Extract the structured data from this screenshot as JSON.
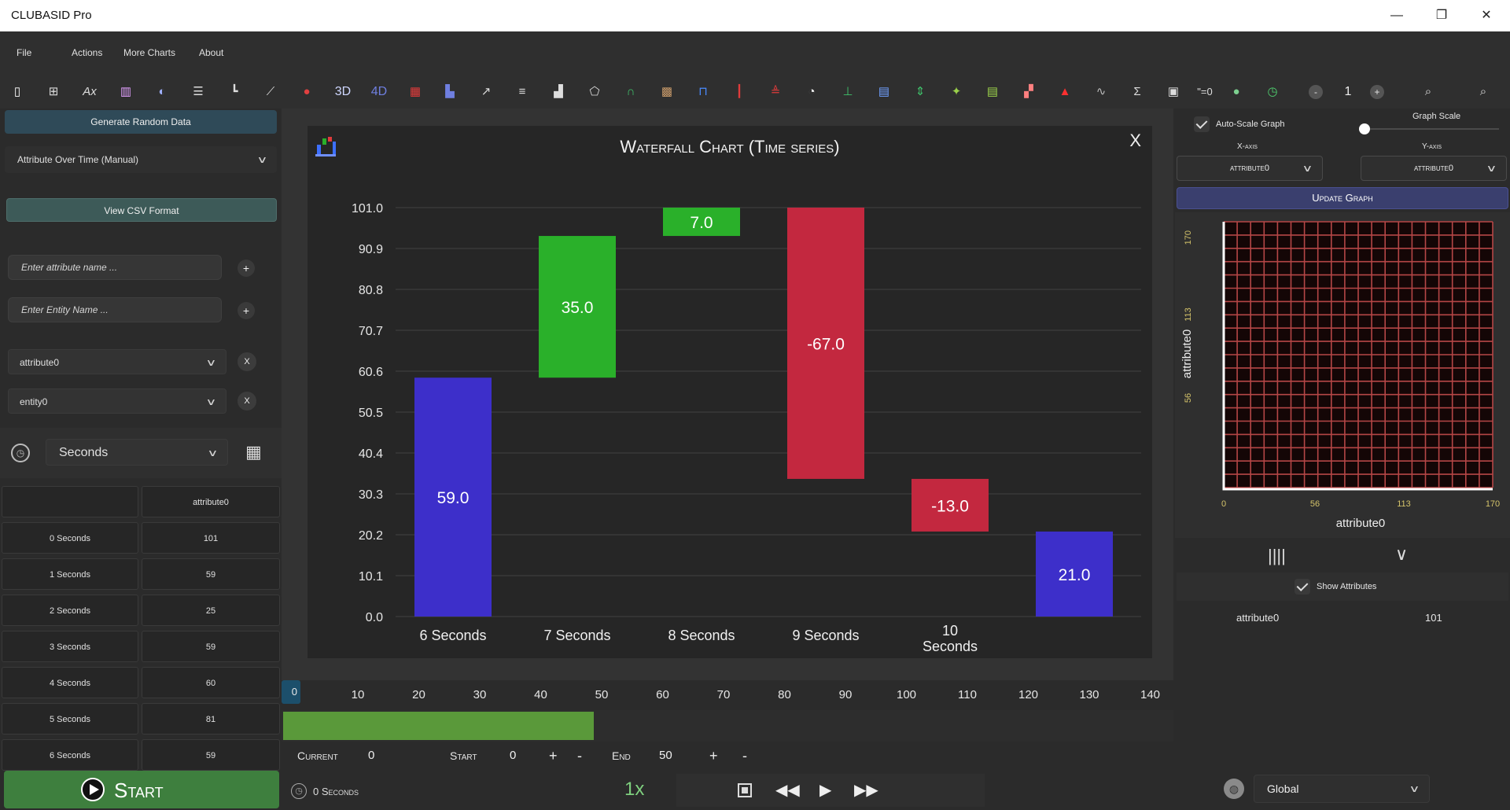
{
  "window": {
    "title": "CLUBASID Pro",
    "minimize": "—",
    "restore": "❐",
    "close": "✕"
  },
  "menu": [
    "File",
    "Actions",
    "More Charts",
    "About"
  ],
  "toolbar": {
    "icons": [
      "new-file-icon",
      "grid-icon",
      "formula-icon",
      "bar-chart-icon",
      "pie-icon",
      "hbar-icon",
      "axis-icon",
      "line-icon",
      "bubble-icon",
      "3d-icon",
      "4d-icon",
      "heat-icon",
      "column-icon",
      "trend-icon",
      "stream-icon",
      "histogram-icon",
      "pentagon-icon",
      "arc-icon",
      "mosaic-icon",
      "box-icon",
      "candle-icon",
      "pyramid-icon",
      "donut-icon",
      "range-icon",
      "map-icon",
      "updown-icon",
      "globe-icon",
      "table-icon",
      "sparkline-icon",
      "alert-icon",
      "wave-icon",
      "sum-icon",
      "image-icon",
      "equation-icon",
      "color-icon",
      "clock-icon"
    ],
    "text_3d": "3D",
    "text_4d": "4D",
    "text_eq": "\"=0",
    "zoom_value": "1",
    "minus": "-",
    "plus": "+"
  },
  "left": {
    "generate_btn": "Generate Random Data",
    "mode_select": "Attribute Over Time (Manual)",
    "view_csv_btn": "View CSV Format",
    "attr_placeholder": "Enter attribute name ...",
    "entity_placeholder": "Enter Entity Name ...",
    "attr_select": "attribute0",
    "entity_select": "entity0",
    "time_unit": "Seconds",
    "x_label": "X",
    "plus_label": "+",
    "table_header": [
      "",
      "attribute0"
    ],
    "table_rows": [
      [
        "0 Seconds",
        "101"
      ],
      [
        "1 Seconds",
        "59"
      ],
      [
        "2 Seconds",
        "25"
      ],
      [
        "3 Seconds",
        "59"
      ],
      [
        "4 Seconds",
        "60"
      ],
      [
        "5 Seconds",
        "81"
      ],
      [
        "6 Seconds",
        "59"
      ]
    ],
    "start_btn": "Start"
  },
  "chart": {
    "close": "X",
    "chart_data": {
      "type": "bar",
      "title": "Waterfall Chart (Time series)",
      "categories": [
        "6 Seconds",
        "7 Seconds",
        "8 Seconds",
        "9 Seconds",
        "10 Seconds",
        ""
      ],
      "steps": [
        59.0,
        35.0,
        7.0,
        -67.0,
        -13.0,
        21.0
      ],
      "bar_labels": [
        "59.0",
        "35.0",
        "7.0",
        "-67.0",
        "-13.0",
        "21.0"
      ],
      "y_ticks": [
        "0.0",
        "10.1",
        "20.2",
        "30.3",
        "40.4",
        "50.5",
        "60.6",
        "70.7",
        "80.8",
        "90.9",
        "101.0"
      ],
      "ylim": [
        0,
        101
      ],
      "colors": {
        "start": "#3d2fca",
        "up": "#2ab02a",
        "down": "#c3283f",
        "end": "#3d2fca"
      },
      "grid": true
    }
  },
  "timeline": {
    "ticks": [
      "10",
      "20",
      "30",
      "40",
      "50",
      "60",
      "70",
      "80",
      "90",
      "100",
      "110",
      "120",
      "130",
      "140"
    ],
    "handle_value": "0",
    "fill_fraction": 50
  },
  "controls": {
    "current_label": "Current",
    "current_value": "0",
    "start_label": "Start",
    "start_value": "0",
    "end_label": "End",
    "end_value": "50",
    "plus": "+",
    "minus": "-",
    "time_readout": "0 Seconds",
    "speed": "1x"
  },
  "right": {
    "auto_scale": "Auto-Scale Graph",
    "graph_scale": "Graph Scale",
    "x_axis_label": "X-axis",
    "y_axis_label": "Y-axis",
    "x_axis_value": "attribute0",
    "y_axis_value": "attribute0",
    "update_btn": "Update Graph",
    "heat_y_ticks": [
      "170",
      "113",
      "56"
    ],
    "heat_x_ticks": [
      "0",
      "56",
      "113",
      "170"
    ],
    "heat_xlabel": "attribute0",
    "heat_ylabel": "attribute0",
    "show_attributes": "Show Attributes",
    "attr_name": "attribute0",
    "attr_value": "101",
    "scope": "Global"
  }
}
